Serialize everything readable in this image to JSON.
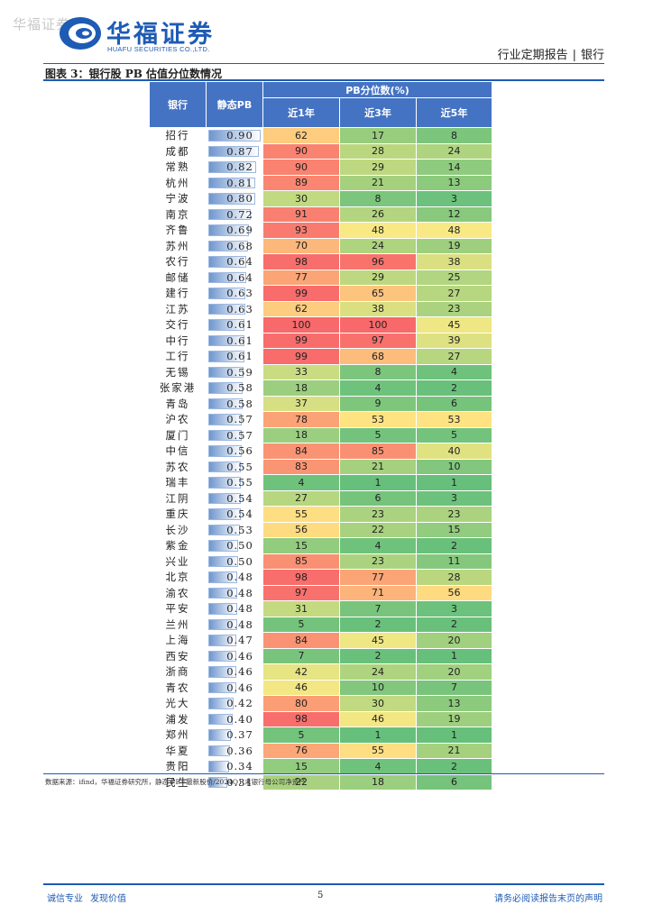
{
  "watermark": "华福证券",
  "logo": {
    "cn": "华福证券",
    "en": "HUAFU SECURITIES CO.,LTD."
  },
  "header": {
    "report_type": "行业定期报告",
    "separator": "|",
    "industry": "银行"
  },
  "figure": {
    "title": "图表 3：银行股 PB 估值分位数情况"
  },
  "colors": {
    "brand": "#1e5bb4",
    "header_fill": "#4573c4",
    "low": "#63be7b",
    "mid": "#ffeb84",
    "high": "#f8696b"
  },
  "table": {
    "headers": {
      "bank": "银行",
      "pb": "静态PB",
      "pct_group": "PB分位数(%)",
      "y1": "近1年",
      "y3": "近3年",
      "y5": "近5年"
    },
    "rows": [
      {
        "bank": "招行",
        "pb": "0.90",
        "y1": 62,
        "y3": 17,
        "y5": 8
      },
      {
        "bank": "成都",
        "pb": "0.87",
        "y1": 90,
        "y3": 28,
        "y5": 24
      },
      {
        "bank": "常熟",
        "pb": "0.82",
        "y1": 90,
        "y3": 29,
        "y5": 14
      },
      {
        "bank": "杭州",
        "pb": "0.81",
        "y1": 89,
        "y3": 21,
        "y5": 13
      },
      {
        "bank": "宁波",
        "pb": "0.80",
        "y1": 30,
        "y3": 8,
        "y5": 3
      },
      {
        "bank": "南京",
        "pb": "0.72",
        "y1": 91,
        "y3": 26,
        "y5": 12
      },
      {
        "bank": "齐鲁",
        "pb": "0.69",
        "y1": 93,
        "y3": 48,
        "y5": 48
      },
      {
        "bank": "苏州",
        "pb": "0.68",
        "y1": 70,
        "y3": 24,
        "y5": 19
      },
      {
        "bank": "农行",
        "pb": "0.64",
        "y1": 98,
        "y3": 96,
        "y5": 38
      },
      {
        "bank": "邮储",
        "pb": "0.64",
        "y1": 77,
        "y3": 29,
        "y5": 25
      },
      {
        "bank": "建行",
        "pb": "0.63",
        "y1": 99,
        "y3": 65,
        "y5": 27
      },
      {
        "bank": "江苏",
        "pb": "0.63",
        "y1": 62,
        "y3": 38,
        "y5": 23
      },
      {
        "bank": "交行",
        "pb": "0.61",
        "y1": 100,
        "y3": 100,
        "y5": 45
      },
      {
        "bank": "中行",
        "pb": "0.61",
        "y1": 99,
        "y3": 97,
        "y5": 39
      },
      {
        "bank": "工行",
        "pb": "0.61",
        "y1": 99,
        "y3": 68,
        "y5": 27
      },
      {
        "bank": "无锡",
        "pb": "0.59",
        "y1": 33,
        "y3": 8,
        "y5": 4
      },
      {
        "bank": "张家港",
        "pb": "0.58",
        "y1": 18,
        "y3": 4,
        "y5": 2
      },
      {
        "bank": "青岛",
        "pb": "0.58",
        "y1": 37,
        "y3": 9,
        "y5": 6
      },
      {
        "bank": "沪农",
        "pb": "0.57",
        "y1": 78,
        "y3": 53,
        "y5": 53
      },
      {
        "bank": "厦门",
        "pb": "0.57",
        "y1": 18,
        "y3": 5,
        "y5": 5
      },
      {
        "bank": "中信",
        "pb": "0.56",
        "y1": 84,
        "y3": 85,
        "y5": 40
      },
      {
        "bank": "苏农",
        "pb": "0.55",
        "y1": 83,
        "y3": 21,
        "y5": 10
      },
      {
        "bank": "瑞丰",
        "pb": "0.55",
        "y1": 4,
        "y3": 1,
        "y5": 1
      },
      {
        "bank": "江阴",
        "pb": "0.54",
        "y1": 27,
        "y3": 6,
        "y5": 3
      },
      {
        "bank": "重庆",
        "pb": "0.54",
        "y1": 55,
        "y3": 23,
        "y5": 23
      },
      {
        "bank": "长沙",
        "pb": "0.53",
        "y1": 56,
        "y3": 22,
        "y5": 15
      },
      {
        "bank": "紫金",
        "pb": "0.50",
        "y1": 15,
        "y3": 4,
        "y5": 2
      },
      {
        "bank": "兴业",
        "pb": "0.50",
        "y1": 85,
        "y3": 23,
        "y5": 11
      },
      {
        "bank": "北京",
        "pb": "0.48",
        "y1": 98,
        "y3": 77,
        "y5": 28
      },
      {
        "bank": "渝农",
        "pb": "0.48",
        "y1": 97,
        "y3": 71,
        "y5": 56
      },
      {
        "bank": "平安",
        "pb": "0.48",
        "y1": 31,
        "y3": 7,
        "y5": 3
      },
      {
        "bank": "兰州",
        "pb": "0.48",
        "y1": 5,
        "y3": 2,
        "y5": 2
      },
      {
        "bank": "上海",
        "pb": "0.47",
        "y1": 84,
        "y3": 45,
        "y5": 20
      },
      {
        "bank": "西安",
        "pb": "0.46",
        "y1": 7,
        "y3": 2,
        "y5": 1
      },
      {
        "bank": "浙商",
        "pb": "0.46",
        "y1": 42,
        "y3": 24,
        "y5": 20
      },
      {
        "bank": "青农",
        "pb": "0.46",
        "y1": 46,
        "y3": 10,
        "y5": 7
      },
      {
        "bank": "光大",
        "pb": "0.42",
        "y1": 80,
        "y3": 30,
        "y5": 13
      },
      {
        "bank": "浦发",
        "pb": "0.40",
        "y1": 98,
        "y3": 46,
        "y5": 19
      },
      {
        "bank": "郑州",
        "pb": "0.37",
        "y1": 5,
        "y3": 1,
        "y5": 1
      },
      {
        "bank": "华夏",
        "pb": "0.36",
        "y1": 76,
        "y3": 55,
        "y5": 21
      },
      {
        "bank": "贵阳",
        "pb": "0.34",
        "y1": 15,
        "y3": 4,
        "y5": 2
      },
      {
        "bank": "民生",
        "pb": "0.31",
        "y1": 22,
        "y3": 18,
        "y5": 6
      }
    ]
  },
  "source": "数据来源：ifind，华福证券研究所，静态 PB=最新股价/2024Q1 末银行母公司净资产",
  "footer": {
    "left1": "诚信专业",
    "left2": "发现价值",
    "page": "5",
    "right": "请务必阅读报告末页的声明"
  }
}
